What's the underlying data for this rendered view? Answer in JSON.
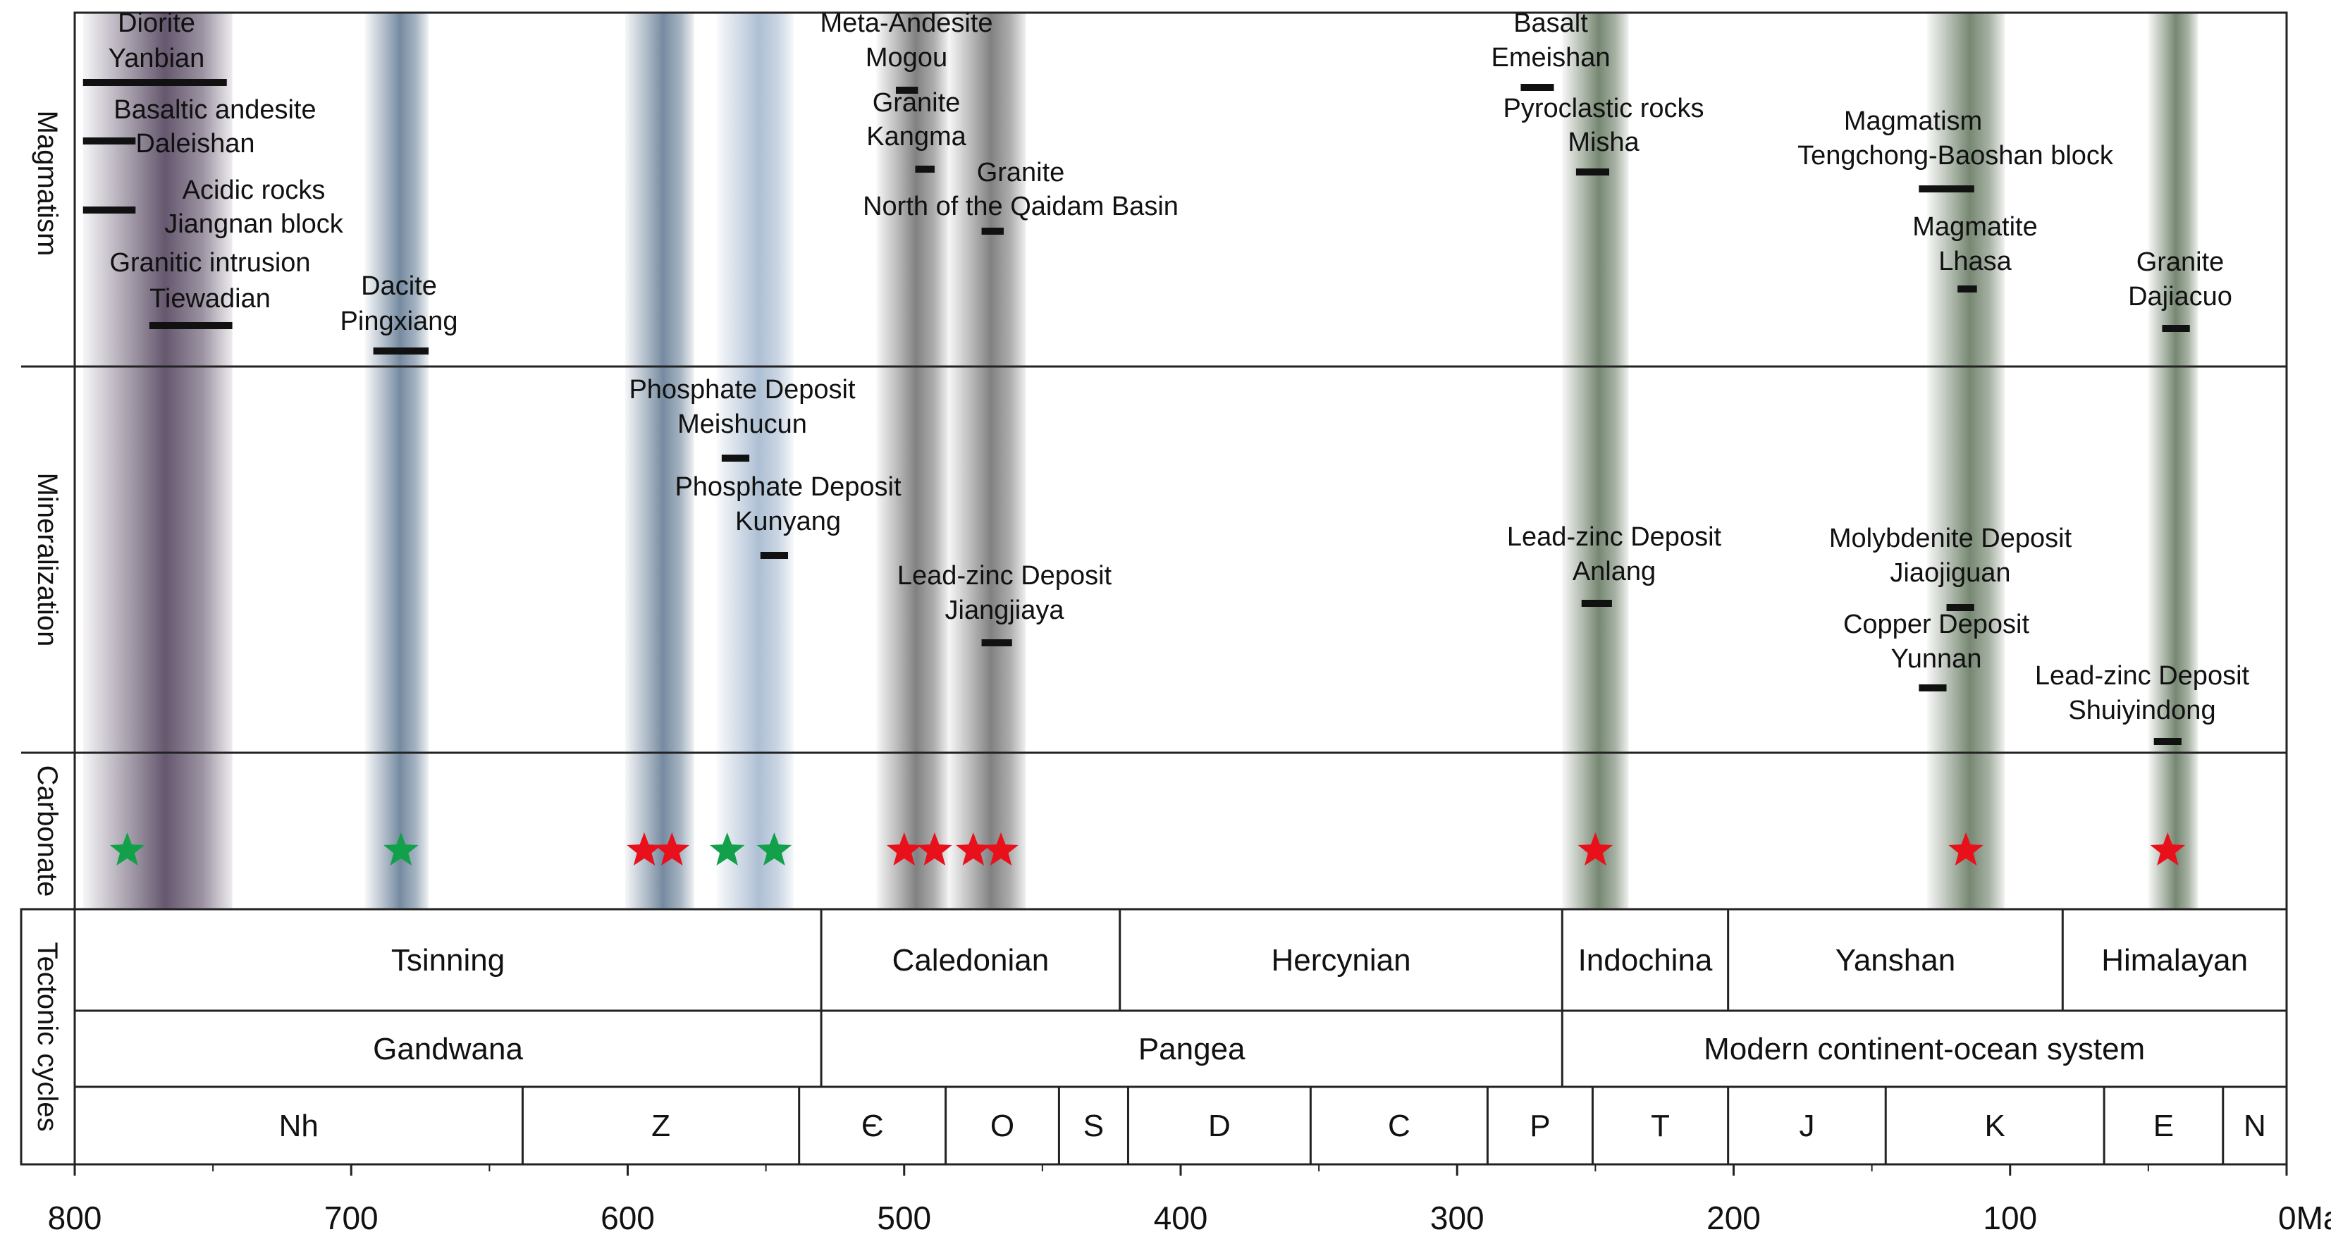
{
  "unit": "Ma",
  "axis": {
    "ticks": [
      800,
      700,
      600,
      500,
      400,
      300,
      200,
      100,
      0
    ],
    "unit_label": "0Ma",
    "range_ma": [
      800,
      0
    ]
  },
  "row_labels": {
    "magmatism": "Magmatism",
    "mineralization": "Mineralization",
    "carbonate": "Carbonate",
    "tectonic": "Tectonic cycles"
  },
  "colors": {
    "purple": "#4a3a55",
    "blue": "#5d7690",
    "lightblue": "#9fb4cc",
    "gray": "#6b6b6b",
    "green": "#5e7259",
    "star_red": "#e8101a",
    "star_green": "#12a04a"
  },
  "bands": [
    {
      "name": "band-800-745",
      "from": 797,
      "to": 743,
      "color": "purple"
    },
    {
      "name": "band-695-672",
      "from": 695,
      "to": 672,
      "color": "blue"
    },
    {
      "name": "band-600-578",
      "from": 601,
      "to": 576,
      "color": "blue"
    },
    {
      "name": "band-568-540",
      "from": 568,
      "to": 540,
      "color": "lightblue"
    },
    {
      "name": "band-510-484",
      "from": 510,
      "to": 484,
      "color": "gray"
    },
    {
      "name": "band-484-456",
      "from": 484,
      "to": 456,
      "color": "gray"
    },
    {
      "name": "band-262-238",
      "from": 262,
      "to": 238,
      "color": "green"
    },
    {
      "name": "band-130-102",
      "from": 130,
      "to": 102,
      "color": "green"
    },
    {
      "name": "band-50-32",
      "from": 50,
      "to": 32,
      "color": "green"
    }
  ],
  "magmatism": [
    {
      "title": "Diorite",
      "location": "Yanbian",
      "age_from": 797,
      "age_to": 745
    },
    {
      "title": "Basaltic andesite",
      "location": "Daleishan",
      "age_from": 797,
      "age_to": 778
    },
    {
      "title": "Acidic rocks",
      "location": "Jiangnan block",
      "age_from": 797,
      "age_to": 778
    },
    {
      "title": "Granitic intrusion",
      "location": "Tiewadian",
      "age_from": 773,
      "age_to": 743
    },
    {
      "title": "Dacite",
      "location": "Pingxiang",
      "age_from": 692,
      "age_to": 672
    },
    {
      "title": "Meta-Andesite",
      "location": "Mogou",
      "age_from": 503,
      "age_to": 495
    },
    {
      "title": "Granite",
      "location": "Kangma",
      "age_from": 496,
      "age_to": 489
    },
    {
      "title": "Granite",
      "location": "North of the Qaidam Basin",
      "age_from": 472,
      "age_to": 464
    },
    {
      "title": "Basalt",
      "location": "Emeishan",
      "age_from": 277,
      "age_to": 265
    },
    {
      "title": "Pyroclastic rocks",
      "location": "Misha",
      "age_from": 257,
      "age_to": 245
    },
    {
      "title": "Magmatism",
      "location": "Tengchong-Baoshan block",
      "age_from": 133,
      "age_to": 113
    },
    {
      "title": "Magmatite",
      "location": "Lhasa",
      "age_from": 119,
      "age_to": 112
    },
    {
      "title": "Granite",
      "location": "Dajiacuo",
      "age_from": 45,
      "age_to": 35
    }
  ],
  "mineralization": [
    {
      "title": "Phosphate Deposit",
      "location": "Meishucun",
      "age_from": 566,
      "age_to": 556
    },
    {
      "title": "Phosphate Deposit",
      "location": "Kunyang",
      "age_from": 552,
      "age_to": 542
    },
    {
      "title": "Lead-zinc Deposit",
      "location": "Jiangjiaya",
      "age_from": 472,
      "age_to": 461
    },
    {
      "title": "Lead-zinc Deposit",
      "location": "Anlang",
      "age_from": 255,
      "age_to": 244
    },
    {
      "title": "Molybdenite Deposit",
      "location": "Jiaojiguan",
      "age_from": 123,
      "age_to": 113
    },
    {
      "title": "Copper Deposit",
      "location": "Yunnan",
      "age_from": 133,
      "age_to": 123
    },
    {
      "title": "Lead-zinc Deposit",
      "location": "Shuiyindong",
      "age_from": 48,
      "age_to": 38
    }
  ],
  "carbonate_stars": [
    {
      "age": 781,
      "color": "star_green"
    },
    {
      "age": 682,
      "color": "star_green"
    },
    {
      "age": 594,
      "color": "star_red"
    },
    {
      "age": 584,
      "color": "star_red"
    },
    {
      "age": 564,
      "color": "star_green"
    },
    {
      "age": 547,
      "color": "star_green"
    },
    {
      "age": 500,
      "color": "star_red"
    },
    {
      "age": 489,
      "color": "star_red"
    },
    {
      "age": 475,
      "color": "star_red"
    },
    {
      "age": 465,
      "color": "star_red"
    },
    {
      "age": 250,
      "color": "star_red"
    },
    {
      "age": 116,
      "color": "star_red"
    },
    {
      "age": 43,
      "color": "star_red"
    }
  ],
  "tectonic_cycles": [
    {
      "label": "Tsinning",
      "from": 800,
      "to": 530
    },
    {
      "label": "Caledonian",
      "from": 530,
      "to": 422
    },
    {
      "label": "Hercynian",
      "from": 422,
      "to": 262
    },
    {
      "label": "Indochina",
      "from": 262,
      "to": 202
    },
    {
      "label": "Yanshan",
      "from": 202,
      "to": 81
    },
    {
      "label": "Himalayan",
      "from": 81,
      "to": 0
    }
  ],
  "supercontinents": [
    {
      "label": "Gandwana",
      "from": 800,
      "to": 530
    },
    {
      "label": "Pangea",
      "from": 530,
      "to": 262
    },
    {
      "label": "Modern continent-ocean system",
      "from": 262,
      "to": 0
    }
  ],
  "periods": [
    {
      "label": "Nh",
      "from": 800,
      "to": 638
    },
    {
      "label": "Z",
      "from": 638,
      "to": 538
    },
    {
      "label": "Є",
      "from": 538,
      "to": 485
    },
    {
      "label": "O",
      "from": 485,
      "to": 444
    },
    {
      "label": "S",
      "from": 444,
      "to": 419
    },
    {
      "label": "D",
      "from": 419,
      "to": 353
    },
    {
      "label": "C",
      "from": 353,
      "to": 289
    },
    {
      "label": "P",
      "from": 289,
      "to": 251
    },
    {
      "label": "T",
      "from": 251,
      "to": 202
    },
    {
      "label": "J",
      "from": 202,
      "to": 145
    },
    {
      "label": "K",
      "from": 145,
      "to": 66
    },
    {
      "label": "E",
      "from": 66,
      "to": 23
    },
    {
      "label": "N",
      "from": 23,
      "to": 0
    }
  ]
}
